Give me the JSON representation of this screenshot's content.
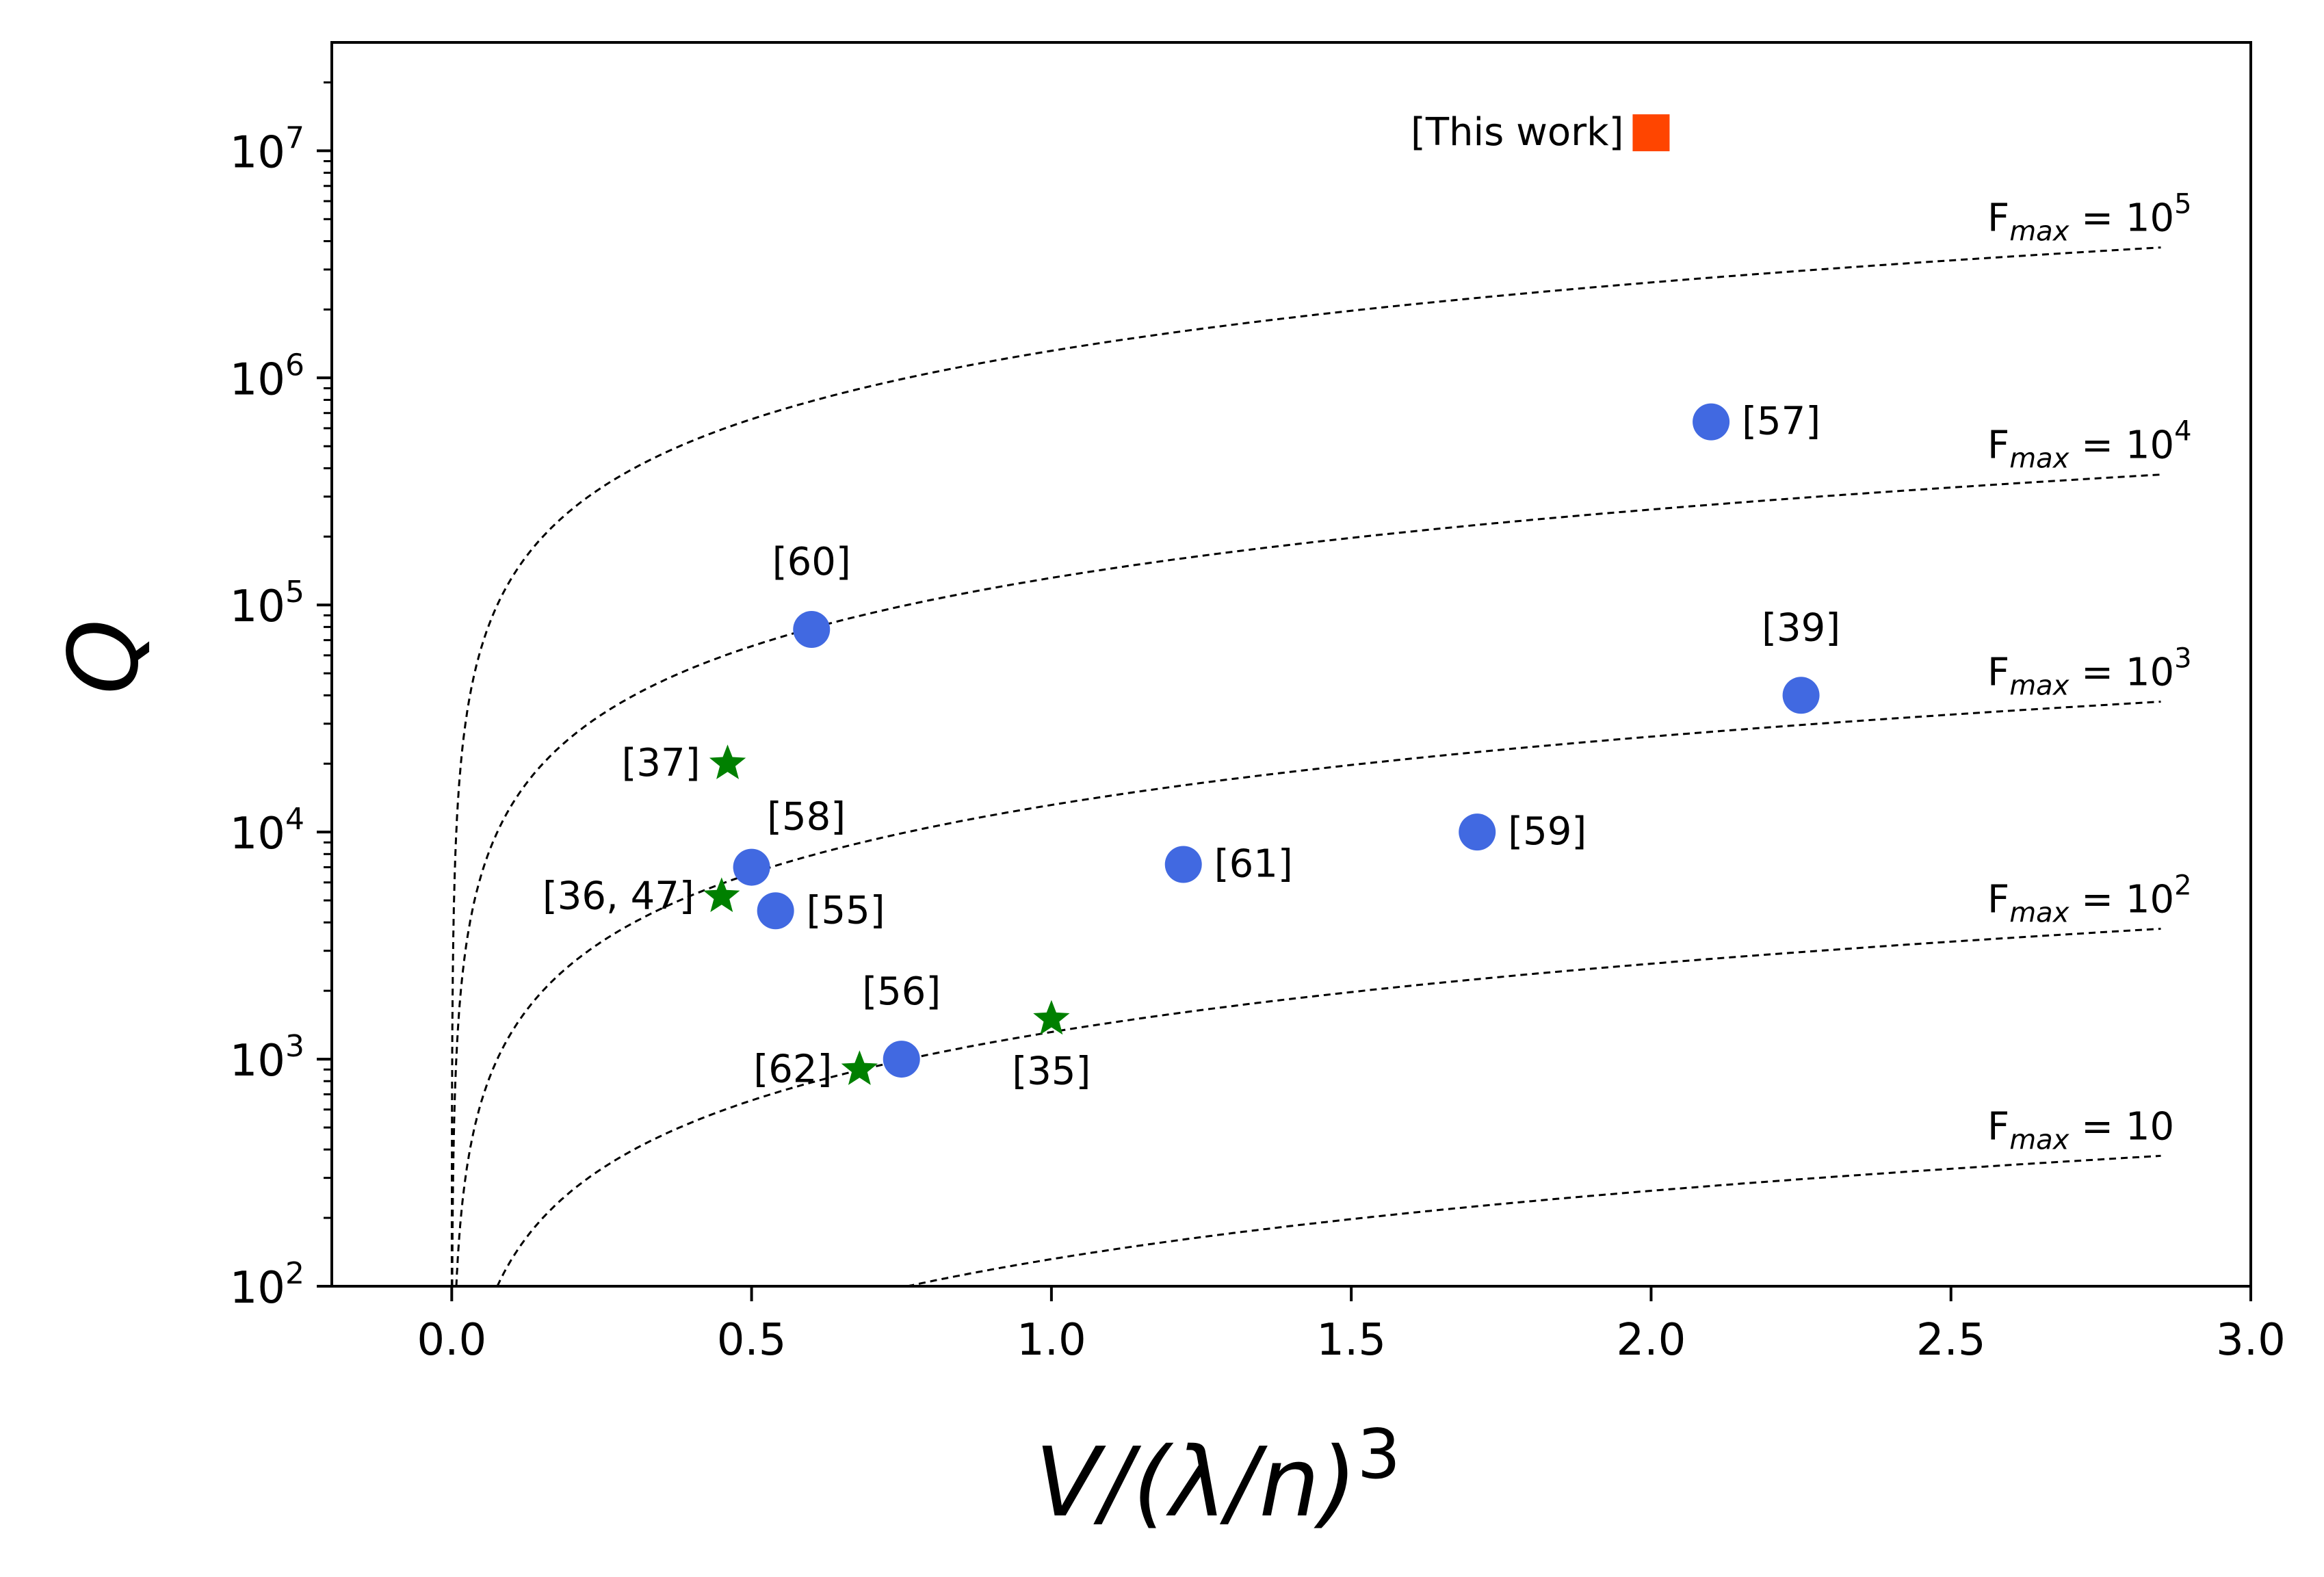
{
  "chart_data": {
    "type": "scatter",
    "title": "",
    "xlabel": "V/(λ/n)",
    "xlabel_exponent": "3",
    "ylabel": "Q",
    "xlim": [
      -0.2,
      3.0
    ],
    "ylim": [
      100,
      30000000
    ],
    "yscale": "log",
    "x_ticks": [
      "0.0",
      "0.5",
      "1.0",
      "1.5",
      "2.0",
      "2.5",
      "3.0"
    ],
    "y_ticks": [
      {
        "base": "10",
        "exp": "2"
      },
      {
        "base": "10",
        "exp": "3"
      },
      {
        "base": "10",
        "exp": "4"
      },
      {
        "base": "10",
        "exp": "5"
      },
      {
        "base": "10",
        "exp": "6"
      },
      {
        "base": "10",
        "exp": "7"
      }
    ],
    "grid": false,
    "colors": {
      "circle": "#4169e1",
      "star": "#008000",
      "square": "#ff4500",
      "curve": "#000000"
    },
    "curves": [
      {
        "name": "Fmax = 10",
        "label_base": "F",
        "label_sub": "max",
        "label_rest": " = 10",
        "label_exp": "",
        "fmax": 10
      },
      {
        "name": "Fmax = 10^2",
        "label_base": "F",
        "label_sub": "max",
        "label_rest": " = 10",
        "label_exp": "2",
        "fmax": 100
      },
      {
        "name": "Fmax = 10^3",
        "label_base": "F",
        "label_sub": "max",
        "label_rest": " = 10",
        "label_exp": "3",
        "fmax": 1000
      },
      {
        "name": "Fmax = 10^4",
        "label_base": "F",
        "label_sub": "max",
        "label_rest": " = 10",
        "label_exp": "4",
        "fmax": 10000
      },
      {
        "name": "Fmax = 10^5",
        "label_base": "F",
        "label_sub": "max",
        "label_rest": " = 10",
        "label_exp": "5",
        "fmax": 100000
      }
    ],
    "curve_x_end": 2.85,
    "series": [
      {
        "name": "circles",
        "marker": "circle",
        "points": [
          {
            "x": 0.6,
            "y": 78000,
            "label": "[60]",
            "label_pos": "above"
          },
          {
            "x": 0.5,
            "y": 7000,
            "label": "[58]",
            "label_pos": "above-right"
          },
          {
            "x": 0.54,
            "y": 4500,
            "label": "[55]",
            "label_pos": "right"
          },
          {
            "x": 0.75,
            "y": 1000,
            "label": "[56]",
            "label_pos": "above"
          },
          {
            "x": 1.22,
            "y": 7200,
            "label": "[61]",
            "label_pos": "right"
          },
          {
            "x": 1.71,
            "y": 10000,
            "label": "[59]",
            "label_pos": "right"
          },
          {
            "x": 2.1,
            "y": 640000,
            "label": "[57]",
            "label_pos": "right"
          },
          {
            "x": 2.25,
            "y": 40000,
            "label": "[39]",
            "label_pos": "above"
          }
        ]
      },
      {
        "name": "stars",
        "marker": "star",
        "points": [
          {
            "x": 0.46,
            "y": 20000,
            "label": "[37]",
            "label_pos": "left"
          },
          {
            "x": 0.45,
            "y": 5200,
            "label": "[36, 47]",
            "label_pos": "left"
          },
          {
            "x": 0.68,
            "y": 900,
            "label": "[62]",
            "label_pos": "left"
          },
          {
            "x": 1.0,
            "y": 1500,
            "label": "[35]",
            "label_pos": "below"
          }
        ]
      },
      {
        "name": "this-work",
        "marker": "square",
        "points": [
          {
            "x": 2.0,
            "y": 12000000,
            "label": "[This work]",
            "label_pos": "left"
          }
        ]
      }
    ]
  }
}
